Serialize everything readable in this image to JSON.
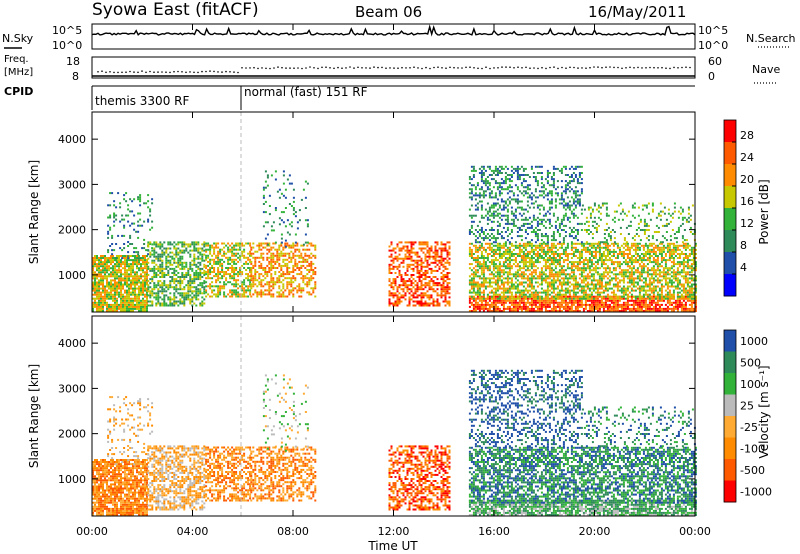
{
  "header": {
    "title": "Syowa East (fitACF)",
    "beam": "Beam 06",
    "date": "16/May/2011"
  },
  "top_panels": {
    "nsky_label": "N.Sky",
    "nsky_ticks": [
      "10^5",
      "10^0"
    ],
    "nsearch_label": "N.Search",
    "nsearch_ticks": [
      "10^5",
      "10^0"
    ],
    "freq_label_1": "Freq.",
    "freq_label_2": "[MHz]",
    "freq_ticks": [
      "18",
      "8"
    ],
    "nave_label": "Nave",
    "nave_ticks": [
      "60",
      "0"
    ],
    "cpid_label": "CPID",
    "cpid_segments": [
      {
        "label": "themis 3300 RF",
        "start_hour": 0
      },
      {
        "label": "normal (fast) 151 RF",
        "start_hour": 6
      }
    ]
  },
  "colors": {
    "power": [
      "#0000ff",
      "#1f4fa8",
      "#2f8a5a",
      "#33b23a",
      "#c8c800",
      "#ff8c00",
      "#ff5a00",
      "#ff0000"
    ],
    "velocity": [
      "#ff0000",
      "#ff5a00",
      "#ff8c00",
      "#ffaa33",
      "#bbbbbb",
      "#33b23a",
      "#2f8a5a",
      "#1f4fa8"
    ]
  },
  "chart_data": {
    "type": "heatmap",
    "xlabel": "Time UT",
    "x_ticks": [
      "00:00",
      "04:00",
      "08:00",
      "12:00",
      "16:00",
      "20:00",
      "00:00"
    ],
    "xlim_hours": [
      0,
      24
    ],
    "panels": [
      {
        "name": "power",
        "ylabel": "Slant Range [km]",
        "y_ticks": [
          "1000",
          "2000",
          "3000",
          "4000"
        ],
        "ylim_km": [
          180,
          4600
        ],
        "colorbar_label": "Power [dB]",
        "colorbar_ticks": [
          "28",
          "24",
          "20",
          "16",
          "12",
          "8",
          "4"
        ],
        "colorbar_range": [
          0,
          32
        ]
      },
      {
        "name": "velocity",
        "ylabel": "Slant Range [km]",
        "y_ticks": [
          "1000",
          "2000",
          "3000",
          "4000"
        ],
        "ylim_km": [
          180,
          4600
        ],
        "colorbar_label": "Velocity [m s⁻¹]",
        "colorbar_ticks": [
          "1000",
          "500",
          "100",
          "25",
          "-25",
          "-100",
          "-500",
          "-1000"
        ]
      }
    ],
    "echo_regions": [
      {
        "t0": 0.0,
        "t1": 2.2,
        "r0": 180,
        "r1": 1400,
        "density": 0.85,
        "power_level": 4,
        "velocity_class": 2
      },
      {
        "t0": 0.6,
        "t1": 2.4,
        "r0": 1300,
        "r1": 2800,
        "density": 0.15,
        "power_level": 2,
        "velocity_class": 3
      },
      {
        "t0": 2.2,
        "t1": 4.5,
        "r0": 300,
        "r1": 1700,
        "density": 0.6,
        "power_level": 3,
        "velocity_class": 3
      },
      {
        "t0": 4.5,
        "t1": 6.3,
        "r0": 500,
        "r1": 1700,
        "density": 0.55,
        "power_level": 4,
        "velocity_class": 2
      },
      {
        "t0": 6.3,
        "t1": 8.9,
        "r0": 500,
        "r1": 1700,
        "density": 0.5,
        "power_level": 5,
        "velocity_class": 2
      },
      {
        "t0": 6.8,
        "t1": 8.6,
        "r0": 1600,
        "r1": 3300,
        "density": 0.1,
        "power_level": 2,
        "velocity_class": 4
      },
      {
        "t0": 11.8,
        "t1": 14.2,
        "r0": 300,
        "r1": 1700,
        "density": 0.55,
        "power_level": 6,
        "velocity_class": 1
      },
      {
        "t0": 15.0,
        "t1": 24.0,
        "r0": 180,
        "r1": 500,
        "density": 0.8,
        "power_level": 6,
        "velocity_class": 5
      },
      {
        "t0": 15.0,
        "t1": 24.0,
        "r0": 450,
        "r1": 1700,
        "density": 0.65,
        "power_level": 4,
        "velocity_class": 6
      },
      {
        "t0": 15.0,
        "t1": 19.5,
        "r0": 1700,
        "r1": 3400,
        "density": 0.35,
        "power_level": 2,
        "velocity_class": 7
      },
      {
        "t0": 19.5,
        "t1": 24.0,
        "r0": 1700,
        "r1": 2600,
        "density": 0.2,
        "power_level": 3,
        "velocity_class": 6
      }
    ]
  }
}
